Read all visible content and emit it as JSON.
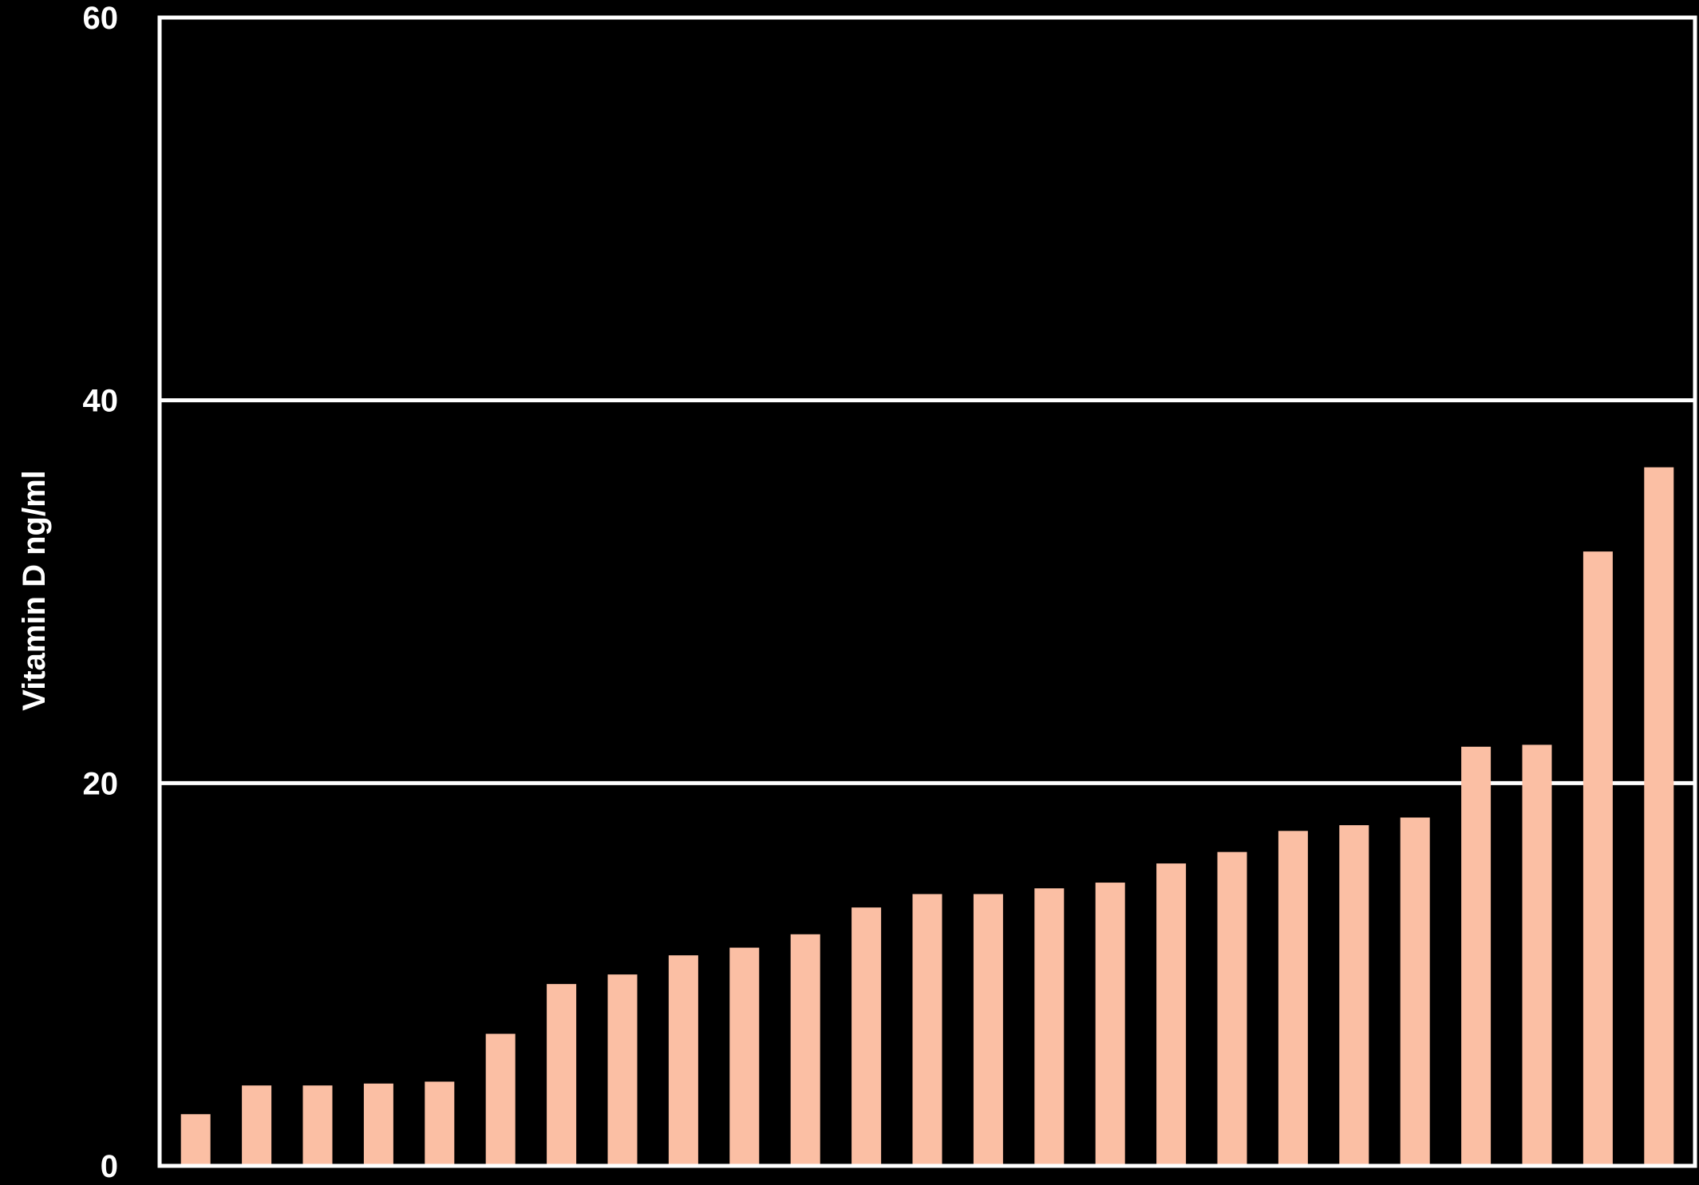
{
  "chart_data": {
    "type": "bar",
    "title": "",
    "xlabel": "",
    "ylabel": "Vitamin D ng/ml",
    "ylim": [
      0,
      60
    ],
    "yticks": [
      0,
      20,
      40,
      60
    ],
    "grid": "horizontal at 20 and 40",
    "legend": "none",
    "values": [
      2.7,
      4.2,
      4.2,
      4.3,
      4.4,
      6.9,
      9.5,
      10.0,
      11.0,
      11.4,
      12.1,
      13.5,
      14.2,
      14.2,
      14.5,
      14.8,
      15.8,
      16.4,
      17.5,
      17.8,
      18.2,
      21.9,
      22.0,
      32.1,
      36.5
    ],
    "colors": {
      "background": "#000000",
      "bar": "#fbbfa4",
      "axis": "#ffffff",
      "text": "#ffffff"
    }
  }
}
